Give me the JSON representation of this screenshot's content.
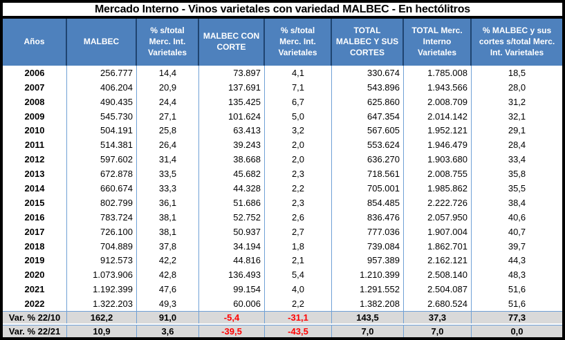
{
  "colors": {
    "frame": "#000000",
    "header_bg": "#4E81BD",
    "header_divider": "#1F4470",
    "data_divider": "#6FA0D5",
    "summary_bg": "#D9D9D9",
    "negative_text": "#FF0000"
  },
  "chart_data": {
    "type": "table",
    "title": "Mercado Interno - Vinos varietales con variedad MALBEC - En hectólitros",
    "unit": "hectólitros",
    "columns": [
      "Años",
      "MALBEC",
      "% s/total\nMerc. Int.\nVarietales",
      "MALBEC  CON\nCORTE",
      "% s/total\nMerc. Int.\nVarietales",
      "TOTAL\nMALBEC Y SUS\nCORTES",
      "TOTAL Merc.\nInterno\nVarietales",
      "% MALBEC y sus\ncortes s/total Merc.\nInt. Varietales"
    ],
    "rows": [
      [
        "2006",
        "256.777",
        "14,4",
        "73.897",
        "4,1",
        "330.674",
        "1.785.008",
        "18,5"
      ],
      [
        "2007",
        "406.204",
        "20,9",
        "137.691",
        "7,1",
        "543.896",
        "1.943.566",
        "28,0"
      ],
      [
        "2008",
        "490.435",
        "24,4",
        "135.425",
        "6,7",
        "625.860",
        "2.008.709",
        "31,2"
      ],
      [
        "2009",
        "545.730",
        "27,1",
        "101.624",
        "5,0",
        "647.354",
        "2.014.142",
        "32,1"
      ],
      [
        "2010",
        "504.191",
        "25,8",
        "63.413",
        "3,2",
        "567.605",
        "1.952.121",
        "29,1"
      ],
      [
        "2011",
        "514.381",
        "26,4",
        "39.243",
        "2,0",
        "553.624",
        "1.946.479",
        "28,4"
      ],
      [
        "2012",
        "597.602",
        "31,4",
        "38.668",
        "2,0",
        "636.270",
        "1.903.680",
        "33,4"
      ],
      [
        "2013",
        "672.878",
        "33,5",
        "45.682",
        "2,3",
        "718.561",
        "2.008.755",
        "35,8"
      ],
      [
        "2014",
        "660.674",
        "33,3",
        "44.328",
        "2,2",
        "705.001",
        "1.985.862",
        "35,5"
      ],
      [
        "2015",
        "802.799",
        "36,1",
        "51.686",
        "2,3",
        "854.485",
        "2.222.726",
        "38,4"
      ],
      [
        "2016",
        "783.724",
        "38,1",
        "52.752",
        "2,6",
        "836.476",
        "2.057.950",
        "40,6"
      ],
      [
        "2017",
        "726.100",
        "38,1",
        "50.937",
        "2,7",
        "777.036",
        "1.907.004",
        "40,7"
      ],
      [
        "2018",
        "704.889",
        "37,8",
        "34.194",
        "1,8",
        "739.084",
        "1.862.701",
        "39,7"
      ],
      [
        "2019",
        "912.573",
        "42,2",
        "44.816",
        "2,1",
        "957.389",
        "2.162.121",
        "44,3"
      ],
      [
        "2020",
        "1.073.906",
        "42,8",
        "136.493",
        "5,4",
        "1.210.399",
        "2.508.140",
        "48,3"
      ],
      [
        "2021",
        "1.192.399",
        "47,6",
        "99.154",
        "4,0",
        "1.291.552",
        "2.504.087",
        "51,6"
      ],
      [
        "2022",
        "1.322.203",
        "49,3",
        "60.006",
        "2,2",
        "1.382.208",
        "2.680.524",
        "51,6"
      ]
    ],
    "summary_rows": [
      [
        "Var. % 22/10",
        "162,2",
        "91,0",
        "-5,4",
        "-31,1",
        "143,5",
        "37,3",
        "77,3"
      ],
      [
        "Var. % 22/21",
        "10,9",
        "3,6",
        "-39,5",
        "-43,5",
        "7,0",
        "7,0",
        "0,0"
      ]
    ]
  }
}
